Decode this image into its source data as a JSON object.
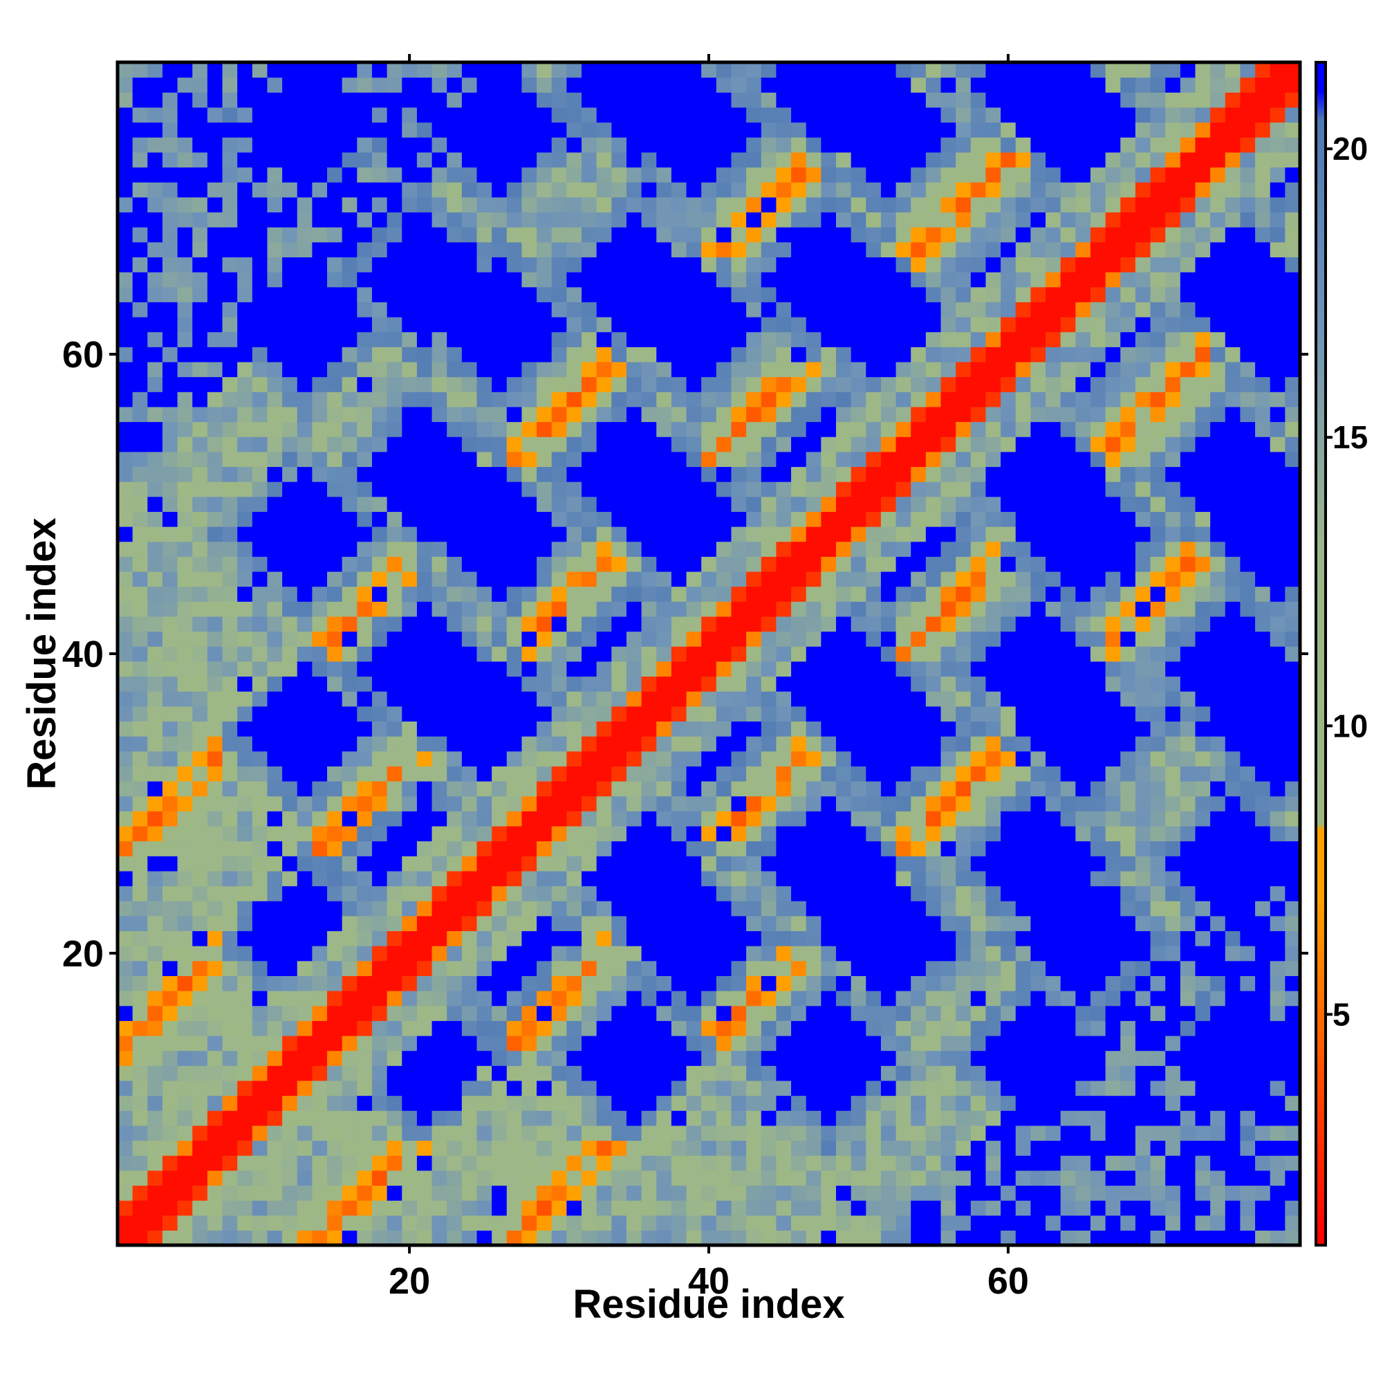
{
  "chart_data": {
    "type": "heatmap",
    "title": "",
    "xlabel": "Residue index",
    "ylabel": "Residue index",
    "n_residues": 79,
    "xlim": [
      1,
      79
    ],
    "ylim": [
      1,
      79
    ],
    "x_ticks": [
      20,
      40,
      60
    ],
    "y_ticks": [
      20,
      40,
      60
    ],
    "colorbar": {
      "ticks": [
        5,
        10,
        15,
        20
      ],
      "range": [
        1,
        21.5
      ],
      "stops": [
        {
          "value": 1,
          "color": "#ff0000"
        },
        {
          "value": 4,
          "color": "#ff5000"
        },
        {
          "value": 7,
          "color": "#ffa000"
        },
        {
          "value": 8.2,
          "color": "#ffa000"
        },
        {
          "value": 8.3,
          "color": "#9fb882"
        },
        {
          "value": 13,
          "color": "#9db78a"
        },
        {
          "value": 17,
          "color": "#6f93b8"
        },
        {
          "value": 20.5,
          "color": "#4f79b4"
        },
        {
          "value": 21,
          "color": "#0000ff"
        },
        {
          "value": 21.5,
          "color": "#0000ff"
        }
      ]
    },
    "value_description": "Pairwise residue distance matrix (symmetric). Red diagonal = close contacts; orange secondary bands = contacts along diagonals; blue blocks = distances >= 21.",
    "diagonal_bands": [
      {
        "offset": 0,
        "values": "near-contact"
      },
      {
        "offset": 13,
        "range": [
          1,
          79
        ]
      },
      {
        "offset": 26,
        "range": [
          1,
          79
        ]
      }
    ],
    "far_blocks_centers": [
      [
        13,
        21
      ],
      [
        26,
        21
      ],
      [
        39,
        21
      ],
      [
        52,
        21
      ],
      [
        65,
        21
      ],
      [
        13,
        35
      ],
      [
        26,
        35
      ],
      [
        39,
        35
      ],
      [
        52,
        35
      ],
      [
        65,
        35
      ],
      [
        78,
        35
      ],
      [
        13,
        48
      ],
      [
        26,
        48
      ],
      [
        39,
        48
      ],
      [
        52,
        48
      ],
      [
        65,
        48
      ],
      [
        78,
        48
      ],
      [
        13,
        62
      ],
      [
        26,
        62
      ],
      [
        39,
        62
      ],
      [
        52,
        62
      ],
      [
        65,
        62
      ],
      [
        78,
        62
      ],
      [
        13,
        75
      ],
      [
        26,
        75
      ],
      [
        39,
        75
      ],
      [
        52,
        75
      ],
      [
        65,
        75
      ],
      [
        78,
        75
      ]
    ]
  }
}
